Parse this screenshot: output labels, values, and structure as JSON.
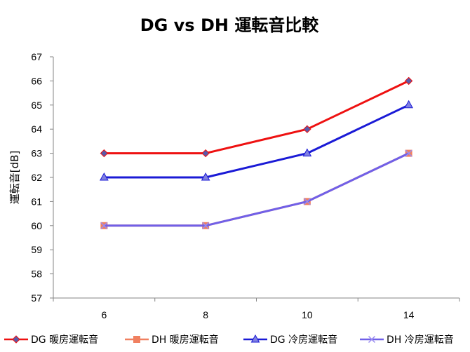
{
  "chart_data": {
    "type": "line",
    "title": "DG vs DH 運転音比較",
    "xlabel": "",
    "ylabel": "運転音[dB]",
    "categories": [
      "6",
      "8",
      "10",
      "14"
    ],
    "ylim": [
      57,
      67
    ],
    "yticks": [
      57,
      58,
      59,
      60,
      61,
      62,
      63,
      64,
      65,
      66,
      67
    ],
    "grid": false,
    "legend_position": "bottom",
    "series": [
      {
        "name": "DG 暖房運転音",
        "values": [
          63,
          63,
          64,
          66
        ],
        "color": "#ee1111",
        "marker": "diamond",
        "marker_color": "#5a5aa8"
      },
      {
        "name": "DH 暖房運転音",
        "values": [
          60,
          60,
          61,
          63
        ],
        "color": "#f08060",
        "marker": "square",
        "marker_color": "#f08060"
      },
      {
        "name": "DG 冷房運転音",
        "values": [
          62,
          62,
          63,
          65
        ],
        "color": "#1a1ad6",
        "marker": "triangle",
        "marker_color": "#8080e0"
      },
      {
        "name": "DH 冷房運転音",
        "values": [
          60,
          60,
          61,
          63
        ],
        "color": "#7060e8",
        "marker": "x",
        "marker_color": "#9a8cf0"
      }
    ]
  }
}
